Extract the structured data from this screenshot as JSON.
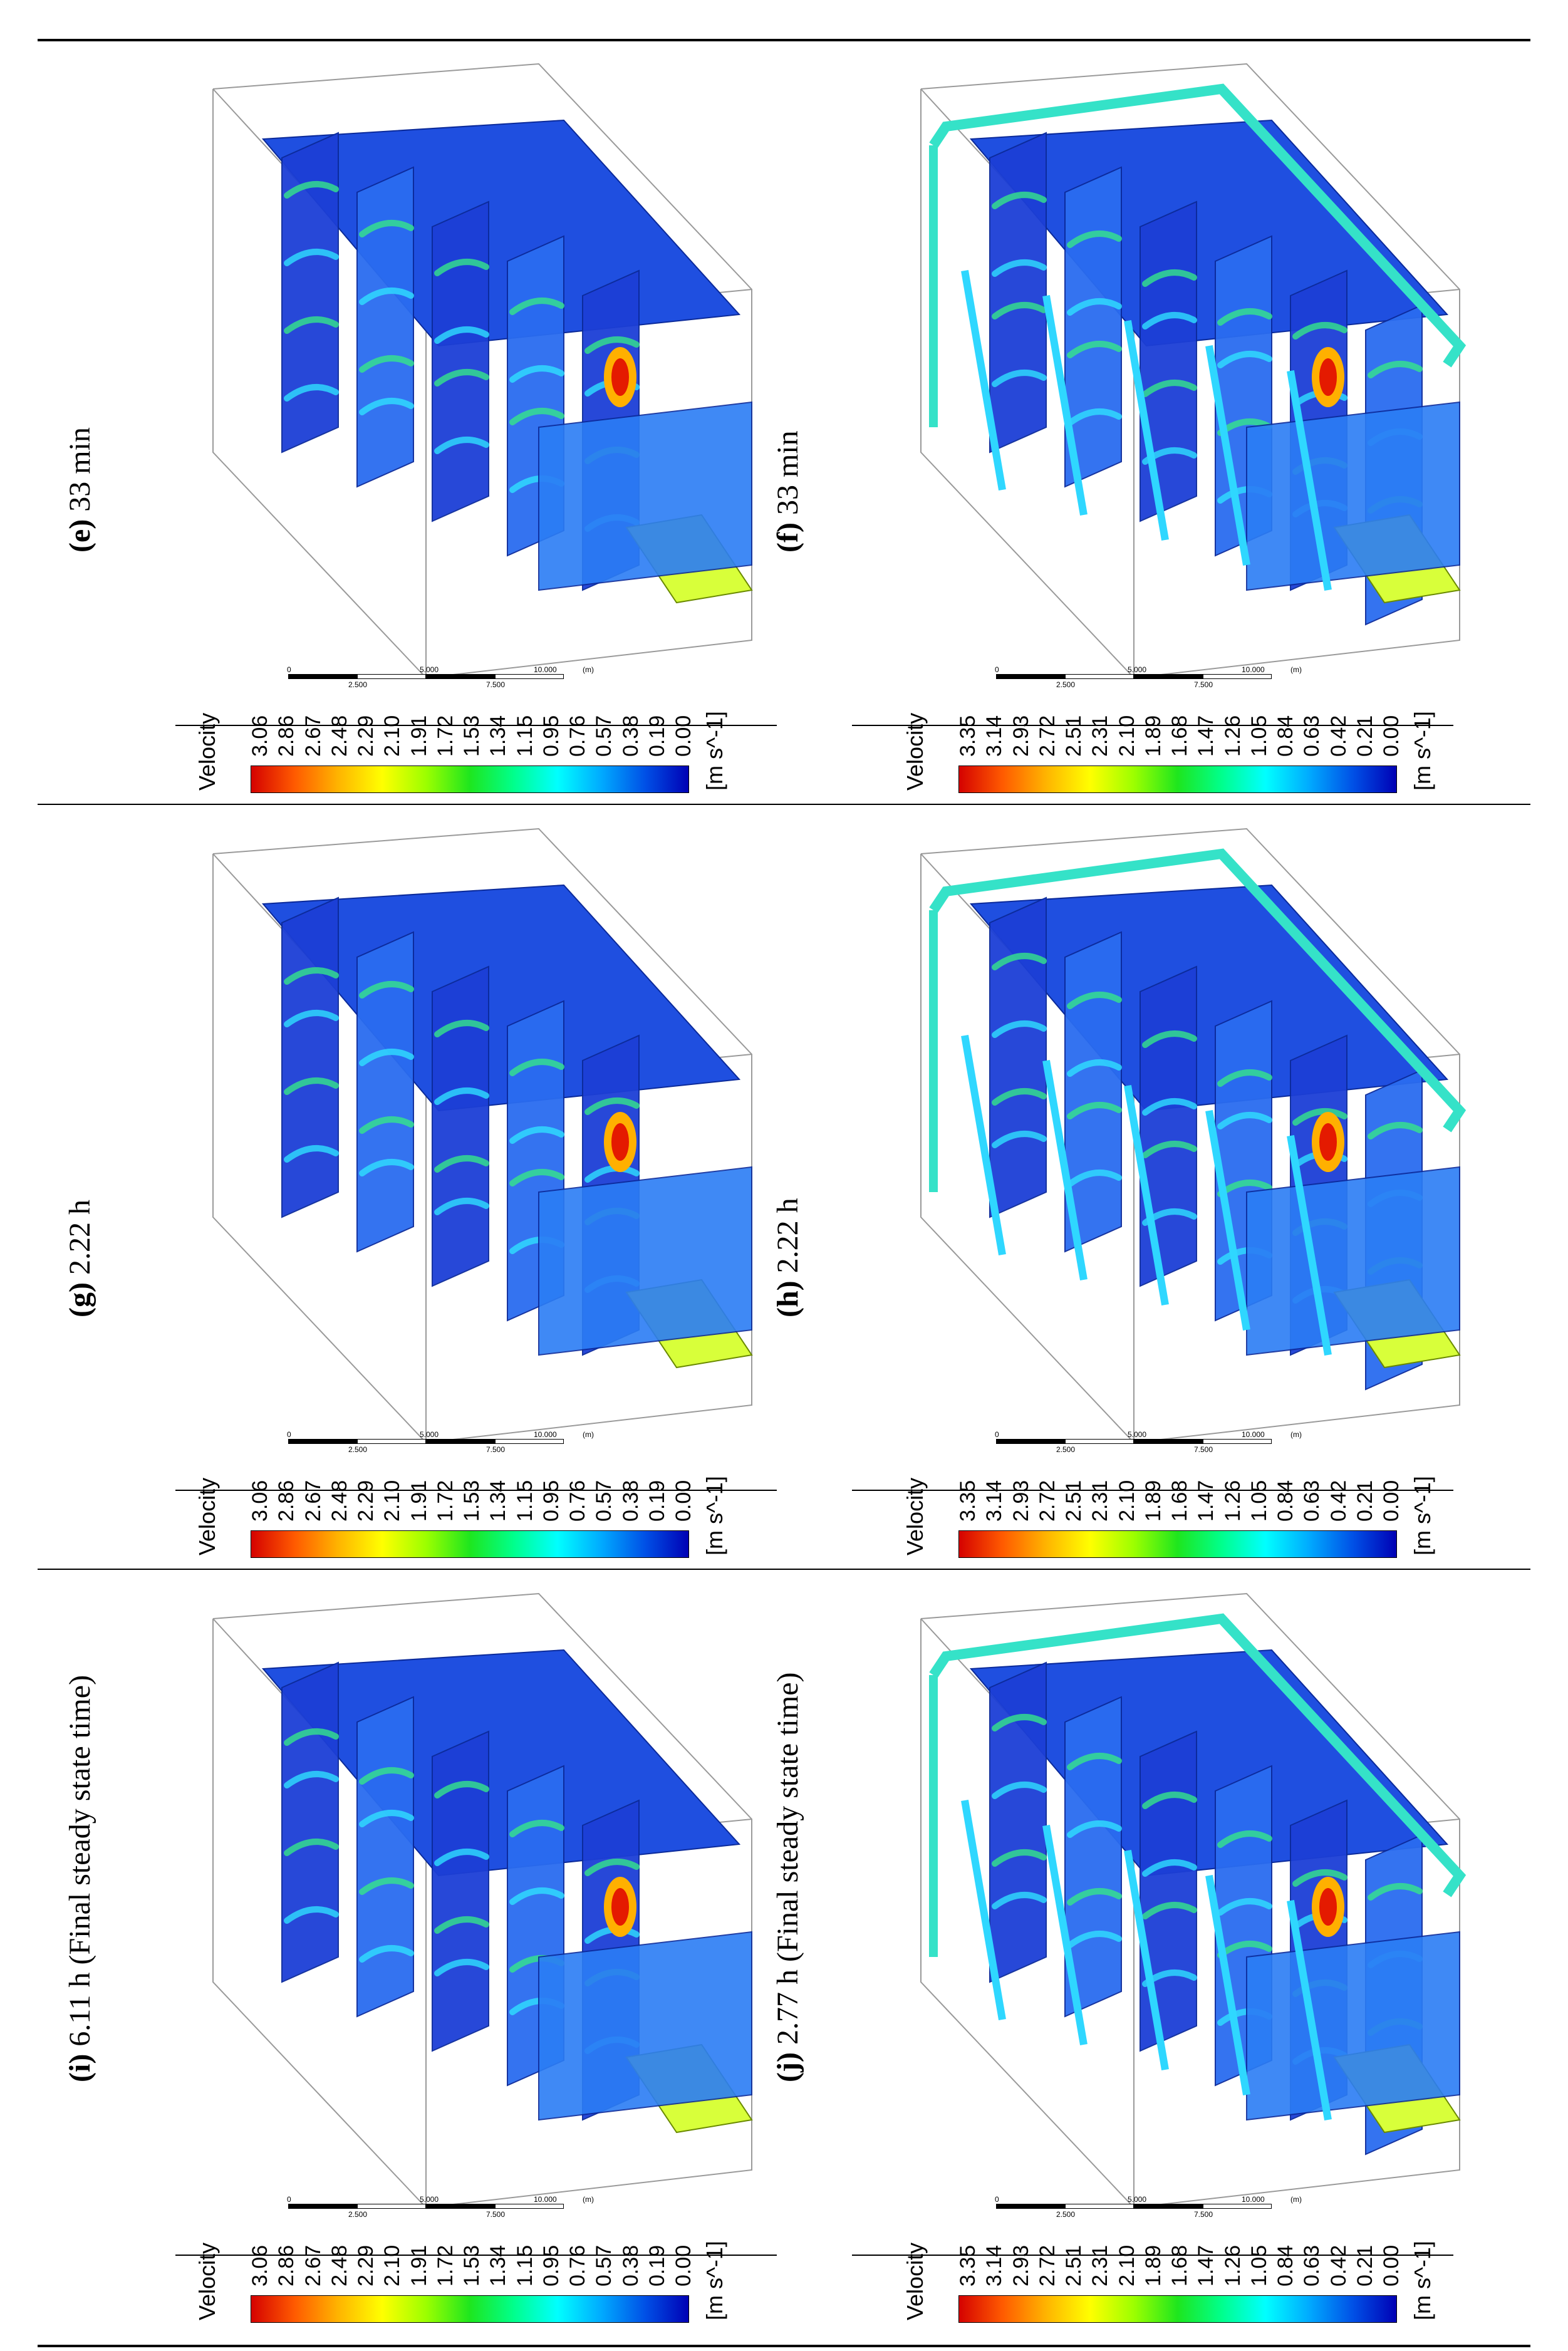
{
  "panels": [
    {
      "letter": "(e)",
      "caption": " 33 min",
      "velocity_label": "Velocity",
      "unit": "[m s^-1]",
      "ticks": [
        "3.06",
        "2.86",
        "2.67",
        "2.48",
        "2.29",
        "2.10",
        "1.91",
        "1.72",
        "1.53",
        "1.34",
        "1.15",
        "0.95",
        "0.76",
        "0.57",
        "0.38",
        "0.19",
        "0.00"
      ],
      "scale": {
        "l0": "0",
        "l1": "2.500",
        "l2": "5.000",
        "l3": "7.500",
        "l4": "10.000",
        "unit": "(m)"
      },
      "variant": "left"
    },
    {
      "letter": "(f)",
      "caption": " 33 min",
      "velocity_label": "Velocity",
      "unit": "[m s^-1]",
      "ticks": [
        "3.35",
        "3.14",
        "2.93",
        "2.72",
        "2.51",
        "2.31",
        "2.10",
        "1.89",
        "1.68",
        "1.47",
        "1.26",
        "1.05",
        "0.84",
        "0.63",
        "0.42",
        "0.21",
        "0.00"
      ],
      "scale": {
        "l0": "0",
        "l1": "2.500",
        "l2": "5.000",
        "l3": "7.500",
        "l4": "10.000",
        "unit": "(m)"
      },
      "variant": "right"
    },
    {
      "letter": "(g)",
      "caption": " 2.22 h",
      "velocity_label": "Velocity",
      "unit": "[m s^-1]",
      "ticks": [
        "3.06",
        "2.86",
        "2.67",
        "2.48",
        "2.29",
        "2.10",
        "1.91",
        "1.72",
        "1.53",
        "1.34",
        "1.15",
        "0.95",
        "0.76",
        "0.57",
        "0.38",
        "0.19",
        "0.00"
      ],
      "scale": {
        "l0": "0",
        "l1": "2.500",
        "l2": "5.000",
        "l3": "7.500",
        "l4": "10.000",
        "unit": "(m)"
      },
      "variant": "left"
    },
    {
      "letter": "(h)",
      "caption": " 2.22 h",
      "velocity_label": "Velocity",
      "unit": "[m s^-1]",
      "ticks": [
        "3.35",
        "3.14",
        "2.93",
        "2.72",
        "2.51",
        "2.31",
        "2.10",
        "1.89",
        "1.68",
        "1.47",
        "1.26",
        "1.05",
        "0.84",
        "0.63",
        "0.42",
        "0.21",
        "0.00"
      ],
      "scale": {
        "l0": "0",
        "l1": "2.500",
        "l2": "5.000",
        "l3": "7.500",
        "l4": "10.000",
        "unit": "(m)"
      },
      "variant": "right"
    },
    {
      "letter": "(i)",
      "caption": " 6.11 h (Final steady state time)",
      "velocity_label": "Velocity",
      "unit": "[m s^-1]",
      "ticks": [
        "3.06",
        "2.86",
        "2.67",
        "2.48",
        "2.29",
        "2.10",
        "1.91",
        "1.72",
        "1.53",
        "1.34",
        "1.15",
        "0.95",
        "0.76",
        "0.57",
        "0.38",
        "0.19",
        "0.00"
      ],
      "scale": {
        "l0": "0",
        "l1": "2.500",
        "l2": "5.000",
        "l3": "7.500",
        "l4": "10.000",
        "unit": "(m)"
      },
      "variant": "left"
    },
    {
      "letter": "(j)",
      "caption": " 2.77 h (Final steady state time)",
      "velocity_label": "Velocity",
      "unit": "[m s^-1]",
      "ticks": [
        "3.35",
        "3.14",
        "2.93",
        "2.72",
        "2.51",
        "2.31",
        "2.10",
        "1.89",
        "1.68",
        "1.47",
        "1.26",
        "1.05",
        "0.84",
        "0.63",
        "0.42",
        "0.21",
        "0.00"
      ],
      "scale": {
        "l0": "0",
        "l1": "2.500",
        "l2": "5.000",
        "l3": "7.500",
        "l4": "10.000",
        "unit": "(m)"
      },
      "variant": "right"
    }
  ],
  "colormap": {
    "stops": [
      "#d40000",
      "#ff5a00",
      "#ffb400",
      "#ffff00",
      "#9cff00",
      "#1ee61e",
      "#00ff8c",
      "#00ffff",
      "#00aaff",
      "#0050e6",
      "#0000b4"
    ]
  }
}
